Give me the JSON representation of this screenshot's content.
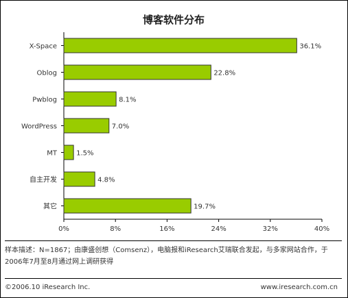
{
  "chart_data": {
    "type": "bar",
    "orientation": "horizontal",
    "title": "博客软件分布",
    "categories": [
      "X-Space",
      "Oblog",
      "Pwblog",
      "WordPress",
      "MT",
      "自主开发",
      "其它"
    ],
    "values": [
      36.1,
      22.8,
      8.1,
      7.0,
      1.5,
      4.8,
      19.7
    ],
    "value_labels": [
      "36.1%",
      "22.8%",
      "8.1%",
      "7.0%",
      "1.5%",
      "4.8%",
      "19.7%"
    ],
    "xlim": [
      0,
      40
    ],
    "xticks": [
      0,
      8,
      16,
      24,
      32,
      40
    ],
    "xtick_labels": [
      "0%",
      "8%",
      "16%",
      "24%",
      "32%",
      "40%"
    ],
    "grid": false,
    "bar_color": "#99cc00",
    "bar_border_color": "#333333"
  },
  "note": "样本描述：N=1867；由康盛创想（Comsenz），电脑报和iResearch艾瑞联合发起，与多家网站合作，于2006年7月至8月通过网上调研获得",
  "footer": {
    "copyright": "©2006.10 iResearch Inc.",
    "website": "www.iresearch.com.cn"
  }
}
